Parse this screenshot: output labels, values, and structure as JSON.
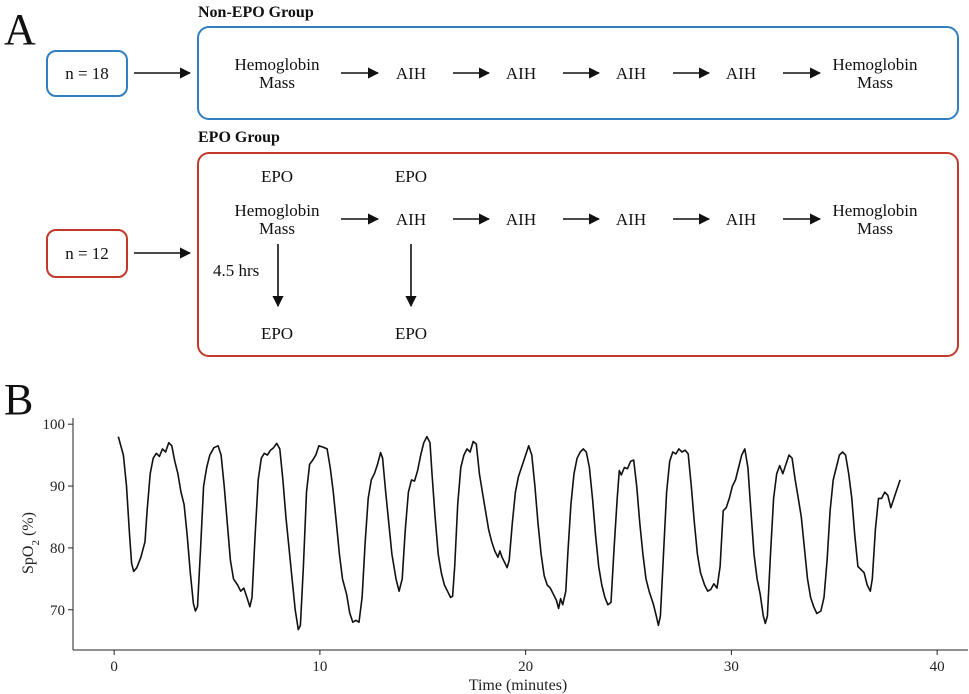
{
  "panel_a": {
    "letter": "A",
    "colors": {
      "non_epo": "#2f7fc1",
      "epo": "#c0392b"
    },
    "non_epo": {
      "title": "Non-EPO Group",
      "n_label": "n = 18",
      "nodes": [
        [
          "Hemoglobin",
          "Mass"
        ],
        [
          "AIH"
        ],
        [
          "AIH"
        ],
        [
          "AIH"
        ],
        [
          "AIH"
        ],
        [
          "Hemoglobin",
          "Mass"
        ]
      ]
    },
    "epo": {
      "title": "EPO Group",
      "n_label": "n = 12",
      "nodes": [
        [
          "Hemoglobin",
          "Mass"
        ],
        [
          "AIH"
        ],
        [
          "AIH"
        ],
        [
          "AIH"
        ],
        [
          "AIH"
        ],
        [
          "Hemoglobin",
          "Mass"
        ]
      ],
      "epo_above": [
        "EPO",
        "EPO"
      ],
      "epo_below": [
        "EPO",
        "EPO"
      ],
      "delay_label": "4.5 hrs"
    }
  },
  "panel_b": {
    "letter": "B"
  },
  "chart_data": {
    "type": "line",
    "xlabel": "Time (minutes)",
    "ylabel": {
      "base": "SpO",
      "sub": "2",
      "unit": " (%)"
    },
    "xlim": [
      -2,
      41.5
    ],
    "ylim": [
      63.5,
      101
    ],
    "xticks": [
      0,
      10,
      20,
      30,
      40
    ],
    "yticks": [
      70,
      80,
      90,
      100
    ],
    "grid": false,
    "series": [
      {
        "points": [
          [
            0.2,
            98
          ],
          [
            0.45,
            95
          ],
          [
            0.6,
            90
          ],
          [
            0.75,
            82
          ],
          [
            0.85,
            77.5
          ],
          [
            0.95,
            76.2
          ],
          [
            1.1,
            76.8
          ],
          [
            1.3,
            78.5
          ],
          [
            1.5,
            81
          ],
          [
            1.6,
            86
          ],
          [
            1.75,
            92
          ],
          [
            1.9,
            94.5
          ],
          [
            2.05,
            95.3
          ],
          [
            2.2,
            94.8
          ],
          [
            2.35,
            96
          ],
          [
            2.5,
            95.5
          ],
          [
            2.65,
            97
          ],
          [
            2.8,
            96.5
          ],
          [
            2.95,
            94
          ],
          [
            3.1,
            92
          ],
          [
            3.25,
            89
          ],
          [
            3.4,
            87
          ],
          [
            3.55,
            82
          ],
          [
            3.7,
            76
          ],
          [
            3.85,
            71
          ],
          [
            3.95,
            69.8
          ],
          [
            4.05,
            70.5
          ],
          [
            4.2,
            80
          ],
          [
            4.35,
            90
          ],
          [
            4.5,
            93
          ],
          [
            4.65,
            95
          ],
          [
            4.85,
            96.2
          ],
          [
            5.05,
            96.5
          ],
          [
            5.2,
            95
          ],
          [
            5.35,
            90
          ],
          [
            5.5,
            84
          ],
          [
            5.65,
            78
          ],
          [
            5.8,
            75
          ],
          [
            6,
            74
          ],
          [
            6.15,
            73
          ],
          [
            6.3,
            73.5
          ],
          [
            6.45,
            72
          ],
          [
            6.6,
            70.5
          ],
          [
            6.7,
            72
          ],
          [
            6.85,
            82
          ],
          [
            7.0,
            91
          ],
          [
            7.15,
            94.5
          ],
          [
            7.3,
            95.3
          ],
          [
            7.45,
            95
          ],
          [
            7.6,
            95.8
          ],
          [
            7.75,
            96.2
          ],
          [
            7.9,
            96.9
          ],
          [
            8.05,
            96
          ],
          [
            8.2,
            91
          ],
          [
            8.35,
            85
          ],
          [
            8.5,
            80
          ],
          [
            8.65,
            75
          ],
          [
            8.8,
            70
          ],
          [
            8.95,
            66.8
          ],
          [
            9.05,
            67.5
          ],
          [
            9.2,
            77
          ],
          [
            9.35,
            89
          ],
          [
            9.5,
            93.5
          ],
          [
            9.65,
            94.2
          ],
          [
            9.8,
            95
          ],
          [
            9.95,
            96.5
          ],
          [
            10.15,
            96.3
          ],
          [
            10.35,
            96
          ],
          [
            10.5,
            93
          ],
          [
            10.65,
            89
          ],
          [
            10.8,
            84
          ],
          [
            10.95,
            79
          ],
          [
            11.1,
            75
          ],
          [
            11.3,
            72.5
          ],
          [
            11.45,
            69.5
          ],
          [
            11.6,
            68
          ],
          [
            11.75,
            68.3
          ],
          [
            11.9,
            68
          ],
          [
            12.05,
            72
          ],
          [
            12.2,
            81
          ],
          [
            12.35,
            88
          ],
          [
            12.5,
            91
          ],
          [
            12.65,
            92
          ],
          [
            12.8,
            93.5
          ],
          [
            12.95,
            95.4
          ],
          [
            13.05,
            94.5
          ],
          [
            13.2,
            89
          ],
          [
            13.35,
            84
          ],
          [
            13.5,
            79
          ],
          [
            13.7,
            75
          ],
          [
            13.85,
            73
          ],
          [
            14.0,
            75
          ],
          [
            14.15,
            83
          ],
          [
            14.3,
            89
          ],
          [
            14.45,
            91
          ],
          [
            14.6,
            90.8
          ],
          [
            14.75,
            92.5
          ],
          [
            14.9,
            95
          ],
          [
            15.05,
            97
          ],
          [
            15.2,
            98
          ],
          [
            15.35,
            97
          ],
          [
            15.45,
            92
          ],
          [
            15.6,
            85
          ],
          [
            15.75,
            79
          ],
          [
            15.9,
            76
          ],
          [
            16.05,
            74
          ],
          [
            16.2,
            73
          ],
          [
            16.35,
            72
          ],
          [
            16.45,
            72.2
          ],
          [
            16.55,
            77
          ],
          [
            16.7,
            87
          ],
          [
            16.85,
            93
          ],
          [
            17.0,
            95
          ],
          [
            17.15,
            96
          ],
          [
            17.3,
            95.5
          ],
          [
            17.45,
            97.2
          ],
          [
            17.6,
            96.8
          ],
          [
            17.75,
            92
          ],
          [
            17.9,
            89
          ],
          [
            18.05,
            86
          ],
          [
            18.2,
            83
          ],
          [
            18.35,
            81
          ],
          [
            18.5,
            79.5
          ],
          [
            18.65,
            78.5
          ],
          [
            18.75,
            79.5
          ],
          [
            18.85,
            78.5
          ],
          [
            19.0,
            77.5
          ],
          [
            19.1,
            76.8
          ],
          [
            19.2,
            78
          ],
          [
            19.35,
            84
          ],
          [
            19.5,
            89
          ],
          [
            19.65,
            91.5
          ],
          [
            19.8,
            93
          ],
          [
            19.95,
            94.5
          ],
          [
            20.15,
            96.5
          ],
          [
            20.3,
            95
          ],
          [
            20.45,
            90
          ],
          [
            20.6,
            84
          ],
          [
            20.75,
            79
          ],
          [
            20.9,
            75.5
          ],
          [
            21.05,
            74
          ],
          [
            21.2,
            73.5
          ],
          [
            21.35,
            72.5
          ],
          [
            21.5,
            71.5
          ],
          [
            21.6,
            70.2
          ],
          [
            21.7,
            71.8
          ],
          [
            21.8,
            70.8
          ],
          [
            21.95,
            73
          ],
          [
            22.05,
            79
          ],
          [
            22.2,
            87
          ],
          [
            22.35,
            92
          ],
          [
            22.5,
            94.5
          ],
          [
            22.65,
            95.5
          ],
          [
            22.8,
            96
          ],
          [
            22.95,
            95.5
          ],
          [
            23.1,
            93
          ],
          [
            23.25,
            88
          ],
          [
            23.4,
            82
          ],
          [
            23.55,
            77
          ],
          [
            23.7,
            74
          ],
          [
            23.85,
            72
          ],
          [
            24.0,
            70.8
          ],
          [
            24.15,
            71.2
          ],
          [
            24.3,
            80
          ],
          [
            24.45,
            88
          ],
          [
            24.55,
            92.5
          ],
          [
            24.65,
            91.8
          ],
          [
            24.8,
            93
          ],
          [
            24.95,
            92.8
          ],
          [
            25.1,
            94
          ],
          [
            25.25,
            94.2
          ],
          [
            25.4,
            90
          ],
          [
            25.55,
            84
          ],
          [
            25.7,
            79
          ],
          [
            25.85,
            75
          ],
          [
            26.0,
            73
          ],
          [
            26.2,
            71
          ],
          [
            26.35,
            69
          ],
          [
            26.45,
            67.5
          ],
          [
            26.55,
            69
          ],
          [
            26.7,
            79
          ],
          [
            26.85,
            89
          ],
          [
            27.0,
            94
          ],
          [
            27.15,
            95.5
          ],
          [
            27.3,
            95.2
          ],
          [
            27.45,
            96
          ],
          [
            27.6,
            95.5
          ],
          [
            27.75,
            95.8
          ],
          [
            27.9,
            95.2
          ],
          [
            28.05,
            90
          ],
          [
            28.2,
            84
          ],
          [
            28.35,
            79
          ],
          [
            28.5,
            76
          ],
          [
            28.7,
            74
          ],
          [
            28.85,
            73
          ],
          [
            29.0,
            73.3
          ],
          [
            29.15,
            74.2
          ],
          [
            29.3,
            73.5
          ],
          [
            29.45,
            77
          ],
          [
            29.6,
            86
          ],
          [
            29.75,
            86.5
          ],
          [
            29.9,
            88
          ],
          [
            30.05,
            90
          ],
          [
            30.2,
            91
          ],
          [
            30.35,
            93
          ],
          [
            30.5,
            95
          ],
          [
            30.65,
            96
          ],
          [
            30.8,
            93
          ],
          [
            30.95,
            86
          ],
          [
            31.1,
            79
          ],
          [
            31.25,
            75
          ],
          [
            31.4,
            72.5
          ],
          [
            31.55,
            69
          ],
          [
            31.65,
            67.8
          ],
          [
            31.75,
            69
          ],
          [
            31.9,
            79
          ],
          [
            32.05,
            88
          ],
          [
            32.2,
            92
          ],
          [
            32.35,
            93.3
          ],
          [
            32.5,
            92
          ],
          [
            32.65,
            93.5
          ],
          [
            32.8,
            95
          ],
          [
            32.95,
            94.5
          ],
          [
            33.1,
            91
          ],
          [
            33.25,
            88
          ],
          [
            33.4,
            85
          ],
          [
            33.55,
            80
          ],
          [
            33.7,
            75
          ],
          [
            33.85,
            72
          ],
          [
            34.0,
            70.5
          ],
          [
            34.15,
            69.4
          ],
          [
            34.35,
            69.8
          ],
          [
            34.5,
            72
          ],
          [
            34.65,
            78
          ],
          [
            34.8,
            86
          ],
          [
            34.95,
            91
          ],
          [
            35.1,
            93
          ],
          [
            35.25,
            95
          ],
          [
            35.4,
            95.5
          ],
          [
            35.55,
            95
          ],
          [
            35.7,
            92
          ],
          [
            35.85,
            88
          ],
          [
            36.0,
            82
          ],
          [
            36.15,
            77
          ],
          [
            36.3,
            76.5
          ],
          [
            36.45,
            76
          ],
          [
            36.6,
            74
          ],
          [
            36.75,
            73
          ],
          [
            36.85,
            75
          ],
          [
            37.0,
            83
          ],
          [
            37.15,
            88
          ],
          [
            37.3,
            88
          ],
          [
            37.45,
            89
          ],
          [
            37.6,
            88.5
          ],
          [
            37.75,
            86.5
          ],
          [
            37.9,
            88
          ],
          [
            38.05,
            89.5
          ],
          [
            38.2,
            91
          ]
        ]
      }
    ]
  }
}
